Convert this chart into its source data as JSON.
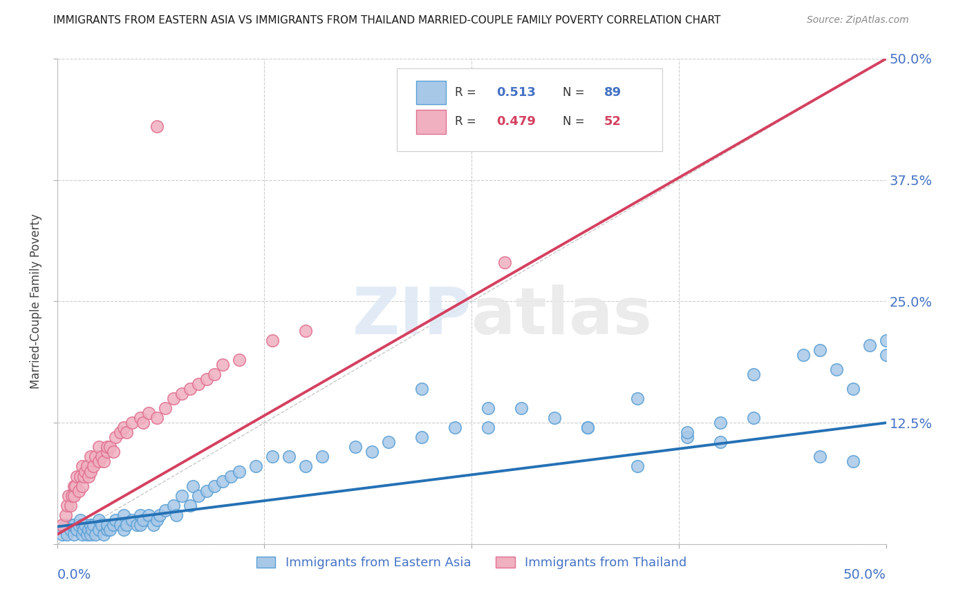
{
  "title": "IMMIGRANTS FROM EASTERN ASIA VS IMMIGRANTS FROM THAILAND MARRIED-COUPLE FAMILY POVERTY CORRELATION CHART",
  "source": "Source: ZipAtlas.com",
  "ylabel": "Married-Couple Family Poverty",
  "ytick_values": [
    0.0,
    0.125,
    0.25,
    0.375,
    0.5
  ],
  "ytick_labels": [
    "",
    "12.5%",
    "25.0%",
    "37.5%",
    "50.0%"
  ],
  "xrange": [
    0.0,
    0.5
  ],
  "yrange": [
    0.0,
    0.5
  ],
  "blue_line_color": "#2471b5",
  "blue_scatter_face": "#a8c8e8",
  "blue_scatter_edge": "#5a9fd4",
  "pink_line_color": "#d44060",
  "pink_scatter_face": "#f0b0c0",
  "pink_scatter_edge": "#e07090",
  "axis_label_color": "#4472c4",
  "grid_color": "#cccccc",
  "legend_R_blue": "0.513",
  "legend_N_blue": "89",
  "legend_R_pink": "0.479",
  "legend_N_pink": "52",
  "blue_trend_x0": 0.0,
  "blue_trend_y0": 0.018,
  "blue_trend_x1": 0.5,
  "blue_trend_y1": 0.125,
  "pink_trend_x0": 0.0,
  "pink_trend_y0": 0.01,
  "pink_trend_x1": 0.5,
  "pink_trend_y1": 0.5,
  "eastern_asia_x": [
    0.003,
    0.005,
    0.006,
    0.008,
    0.009,
    0.01,
    0.01,
    0.012,
    0.013,
    0.014,
    0.015,
    0.015,
    0.016,
    0.017,
    0.018,
    0.019,
    0.02,
    0.02,
    0.021,
    0.022,
    0.023,
    0.025,
    0.025,
    0.027,
    0.028,
    0.03,
    0.03,
    0.032,
    0.034,
    0.035,
    0.038,
    0.04,
    0.04,
    0.042,
    0.045,
    0.048,
    0.05,
    0.05,
    0.052,
    0.055,
    0.058,
    0.06,
    0.062,
    0.065,
    0.07,
    0.072,
    0.075,
    0.08,
    0.082,
    0.085,
    0.09,
    0.095,
    0.1,
    0.105,
    0.11,
    0.12,
    0.13,
    0.14,
    0.15,
    0.16,
    0.18,
    0.19,
    0.2,
    0.22,
    0.24,
    0.26,
    0.28,
    0.3,
    0.32,
    0.35,
    0.38,
    0.4,
    0.42,
    0.45,
    0.46,
    0.47,
    0.48,
    0.49,
    0.5,
    0.5,
    0.38,
    0.4,
    0.46,
    0.48,
    0.22,
    0.26,
    0.32,
    0.35,
    0.42
  ],
  "eastern_asia_y": [
    0.01,
    0.02,
    0.01,
    0.015,
    0.02,
    0.01,
    0.02,
    0.015,
    0.02,
    0.025,
    0.01,
    0.02,
    0.015,
    0.02,
    0.01,
    0.015,
    0.01,
    0.02,
    0.015,
    0.02,
    0.01,
    0.015,
    0.025,
    0.02,
    0.01,
    0.015,
    0.02,
    0.015,
    0.02,
    0.025,
    0.02,
    0.015,
    0.03,
    0.02,
    0.025,
    0.02,
    0.02,
    0.03,
    0.025,
    0.03,
    0.02,
    0.025,
    0.03,
    0.035,
    0.04,
    0.03,
    0.05,
    0.04,
    0.06,
    0.05,
    0.055,
    0.06,
    0.065,
    0.07,
    0.075,
    0.08,
    0.09,
    0.09,
    0.08,
    0.09,
    0.1,
    0.095,
    0.105,
    0.11,
    0.12,
    0.12,
    0.14,
    0.13,
    0.12,
    0.15,
    0.11,
    0.125,
    0.13,
    0.195,
    0.2,
    0.18,
    0.16,
    0.205,
    0.195,
    0.21,
    0.115,
    0.105,
    0.09,
    0.085,
    0.16,
    0.14,
    0.12,
    0.08,
    0.175
  ],
  "thailand_x": [
    0.003,
    0.005,
    0.006,
    0.007,
    0.008,
    0.009,
    0.01,
    0.01,
    0.011,
    0.012,
    0.013,
    0.014,
    0.015,
    0.015,
    0.016,
    0.017,
    0.018,
    0.019,
    0.02,
    0.02,
    0.022,
    0.023,
    0.025,
    0.025,
    0.027,
    0.028,
    0.03,
    0.03,
    0.032,
    0.034,
    0.035,
    0.038,
    0.04,
    0.042,
    0.045,
    0.05,
    0.052,
    0.055,
    0.06,
    0.065,
    0.07,
    0.075,
    0.08,
    0.085,
    0.09,
    0.095,
    0.1,
    0.11,
    0.13,
    0.15,
    0.27,
    0.06
  ],
  "thailand_y": [
    0.02,
    0.03,
    0.04,
    0.05,
    0.04,
    0.05,
    0.06,
    0.05,
    0.06,
    0.07,
    0.055,
    0.07,
    0.06,
    0.08,
    0.07,
    0.075,
    0.08,
    0.07,
    0.075,
    0.09,
    0.08,
    0.09,
    0.085,
    0.1,
    0.09,
    0.085,
    0.095,
    0.1,
    0.1,
    0.095,
    0.11,
    0.115,
    0.12,
    0.115,
    0.125,
    0.13,
    0.125,
    0.135,
    0.13,
    0.14,
    0.15,
    0.155,
    0.16,
    0.165,
    0.17,
    0.175,
    0.185,
    0.19,
    0.21,
    0.22,
    0.29,
    0.43
  ]
}
